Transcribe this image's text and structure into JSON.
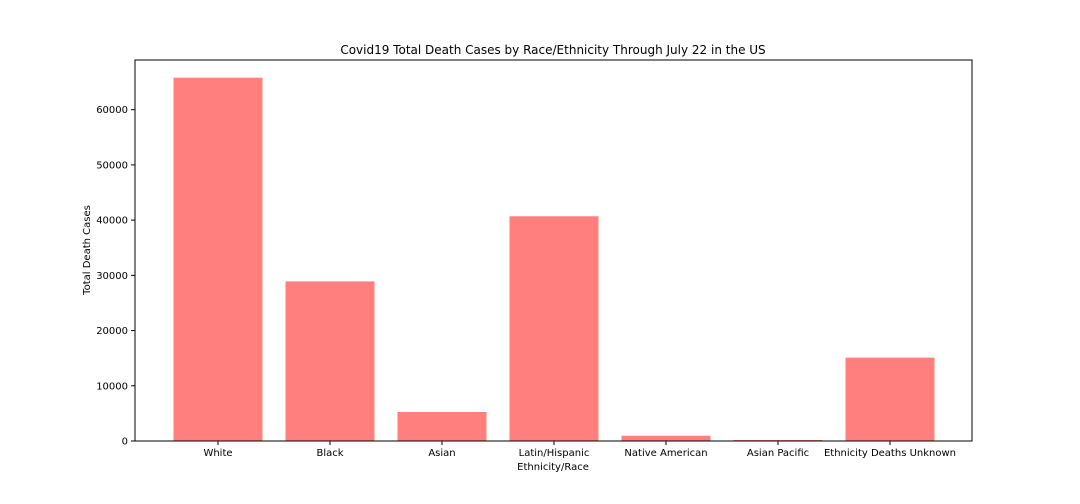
{
  "chart_data": {
    "type": "bar",
    "title": "Covid19 Total Death Cases by Race/Ethnicity Through July 22 in the US",
    "xlabel": "Ethnicity/Race",
    "ylabel": "Total Death Cases",
    "categories": [
      "White",
      "Black",
      "Asian",
      "Latin/Hispanic",
      "Native American",
      "Asian Pacific",
      "Ethnicity Deaths Unknown"
    ],
    "values": [
      65800,
      28900,
      5250,
      40700,
      950,
      180,
      15100
    ],
    "ylim": [
      0,
      69000
    ],
    "yticks": [
      0,
      10000,
      20000,
      30000,
      40000,
      50000,
      60000
    ],
    "ytick_labels": [
      "0",
      "10000",
      "20000",
      "30000",
      "40000",
      "50000",
      "60000"
    ],
    "bar_color": "#ff7f7f",
    "grid": false,
    "legend": "none"
  }
}
